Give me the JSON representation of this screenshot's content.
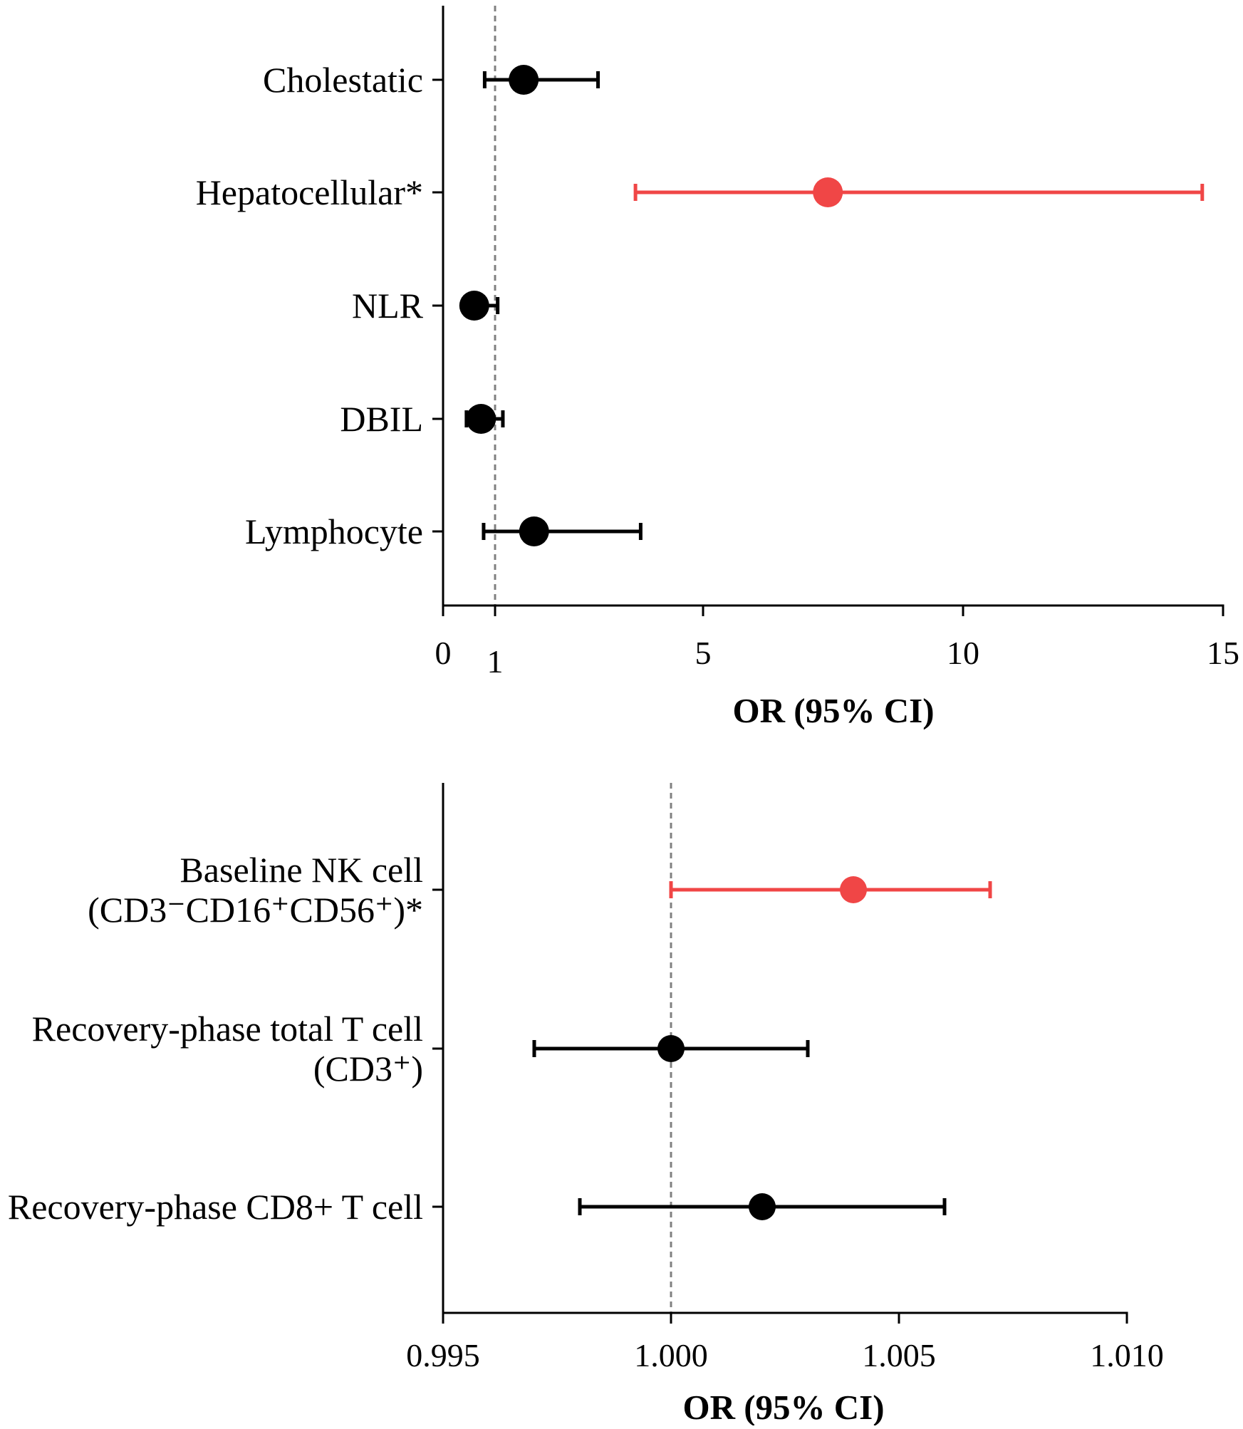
{
  "colors": {
    "normal": "#000000",
    "significant": "#f04646",
    "reference": "#808080",
    "axis": "#000000"
  },
  "chart_data": [
    {
      "type": "forest",
      "xlabel": "OR (95% CI)",
      "xlim": [
        0,
        15
      ],
      "xticks": [
        0,
        1,
        5,
        10,
        15
      ],
      "xtick_labels": [
        "0",
        "1",
        "5",
        "10",
        "15"
      ],
      "reference_line": 1,
      "rows": [
        {
          "label": [
            "Cholestatic"
          ],
          "or": 1.55,
          "lower": 0.8,
          "upper": 2.98,
          "significant": false
        },
        {
          "label": [
            "Hepatocellular*"
          ],
          "or": 7.4,
          "lower": 3.7,
          "upper": 14.6,
          "significant": true
        },
        {
          "label": [
            "NLR"
          ],
          "or": 0.6,
          "lower": 0.45,
          "upper": 1.05,
          "significant": false
        },
        {
          "label": [
            "DBIL"
          ],
          "or": 0.73,
          "lower": 0.45,
          "upper": 1.15,
          "significant": false
        },
        {
          "label": [
            "Lymphocyte"
          ],
          "or": 1.75,
          "lower": 0.78,
          "upper": 3.8,
          "significant": false
        }
      ]
    },
    {
      "type": "forest",
      "xlabel": "OR (95% CI)",
      "xlim": [
        0.995,
        1.01
      ],
      "xticks": [
        0.995,
        1.0,
        1.005,
        1.01
      ],
      "xtick_labels": [
        "0.995",
        "1.000",
        "1.005",
        "1.010"
      ],
      "reference_line": 1.0,
      "rows": [
        {
          "label": [
            "Baseline NK cell",
            "(CD3⁻CD16⁺CD56⁺)*"
          ],
          "or": 1.004,
          "lower": 1.0,
          "upper": 1.007,
          "significant": true
        },
        {
          "label": [
            "Recovery-phase total T cell",
            "(CD3⁺)"
          ],
          "or": 1.0,
          "lower": 0.997,
          "upper": 1.003,
          "significant": false
        },
        {
          "label": [
            "Recovery-phase CD8+ T cell"
          ],
          "or": 1.002,
          "lower": 0.998,
          "upper": 1.006,
          "significant": false
        }
      ]
    }
  ]
}
